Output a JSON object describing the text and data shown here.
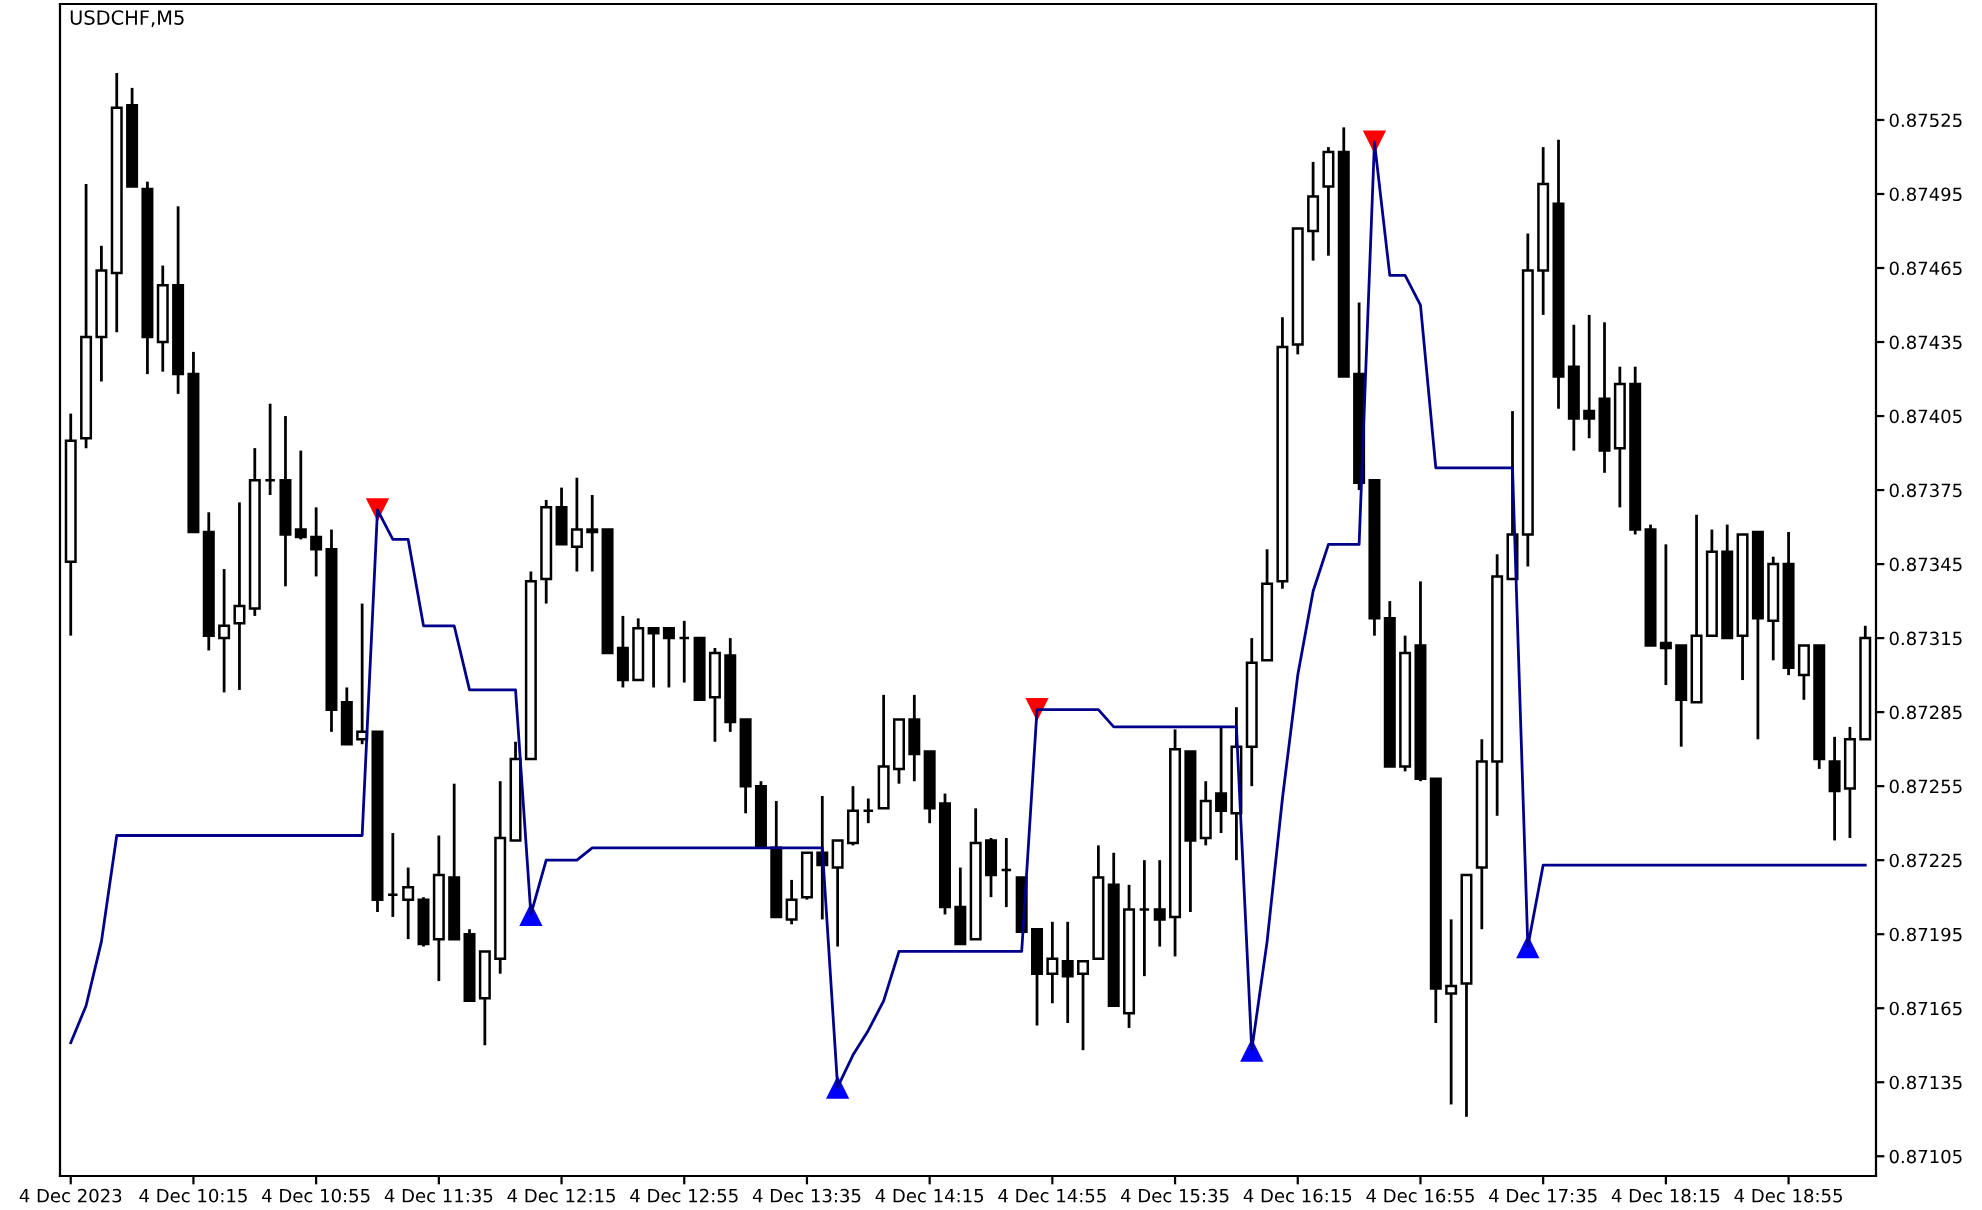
{
  "chart_data": {
    "type": "candlestick",
    "title": "USDCHF,M5",
    "categories": [
      "4 Dec 2023",
      null,
      null,
      null,
      null,
      null,
      null,
      null,
      "4 Dec 10:15",
      null,
      null,
      null,
      null,
      null,
      null,
      null,
      "4 Dec 10:55",
      null,
      null,
      null,
      null,
      null,
      null,
      null,
      "4 Dec 11:35",
      null,
      null,
      null,
      null,
      null,
      null,
      null,
      "4 Dec 12:15",
      null,
      null,
      null,
      null,
      null,
      null,
      null,
      "4 Dec 12:55",
      null,
      null,
      null,
      null,
      null,
      null,
      null,
      "4 Dec 13:35",
      null,
      null,
      null,
      null,
      null,
      null,
      null,
      "4 Dec 14:15",
      null,
      null,
      null,
      null,
      null,
      null,
      null,
      "4 Dec 14:55",
      null,
      null,
      null,
      null,
      null,
      null,
      null,
      "4 Dec 15:35",
      null,
      null,
      null,
      null,
      null,
      null,
      null,
      "4 Dec 16:15",
      null,
      null,
      null,
      null,
      null,
      null,
      null,
      "4 Dec 16:55",
      null,
      null,
      null,
      null,
      null,
      null,
      null,
      "4 Dec 17:35",
      null,
      null,
      null,
      null,
      null,
      null,
      null,
      "4 Dec 18:15",
      null,
      null,
      null,
      null,
      null,
      null,
      null,
      "4 Dec 18:55",
      null,
      null,
      null,
      null,
      null
    ],
    "ohlc": [
      [
        0.87346,
        0.87406,
        0.87316,
        0.87395
      ],
      [
        0.87396,
        0.87499,
        0.87392,
        0.87437
      ],
      [
        0.87437,
        0.87474,
        0.87419,
        0.87464
      ],
      [
        0.87463,
        0.87544,
        0.87439,
        0.8753
      ],
      [
        0.87531,
        0.87538,
        0.87498,
        0.87498
      ],
      [
        0.87497,
        0.875,
        0.87422,
        0.87437
      ],
      [
        0.87435,
        0.87466,
        0.87423,
        0.87458
      ],
      [
        0.87458,
        0.8749,
        0.87414,
        0.87422
      ],
      [
        0.87422,
        0.87431,
        0.87358,
        0.87358
      ],
      [
        0.87358,
        0.87366,
        0.8731,
        0.87316
      ],
      [
        0.87315,
        0.87343,
        0.87293,
        0.8732
      ],
      [
        0.87321,
        0.8737,
        0.87294,
        0.87328
      ],
      [
        0.87327,
        0.87392,
        0.87324,
        0.87379
      ],
      [
        0.87379,
        0.8741,
        0.87373,
        0.87379
      ],
      [
        0.87379,
        0.87405,
        0.87336,
        0.87357
      ],
      [
        0.87359,
        0.87391,
        0.87355,
        0.87356
      ],
      [
        0.87356,
        0.87368,
        0.8734,
        0.87351
      ],
      [
        0.87351,
        0.87359,
        0.87277,
        0.87286
      ],
      [
        0.87289,
        0.87295,
        0.87272,
        0.87272
      ],
      [
        0.87274,
        0.87329,
        0.87272,
        0.87277
      ],
      [
        0.87277,
        0.87277,
        0.87204,
        0.87209
      ],
      [
        0.87211,
        0.87236,
        0.87202,
        0.87211
      ],
      [
        0.87209,
        0.87222,
        0.87193,
        0.87214
      ],
      [
        0.87209,
        0.8721,
        0.8719,
        0.87191
      ],
      [
        0.87193,
        0.87235,
        0.87176,
        0.87219
      ],
      [
        0.87218,
        0.87256,
        0.87193,
        0.87193
      ],
      [
        0.87195,
        0.87197,
        0.87168,
        0.87168
      ],
      [
        0.87169,
        0.87188,
        0.8715,
        0.87188
      ],
      [
        0.87185,
        0.87257,
        0.87179,
        0.87234
      ],
      [
        0.87233,
        0.87273,
        0.87233,
        0.87266
      ],
      [
        0.87266,
        0.87342,
        0.87266,
        0.87338
      ],
      [
        0.87339,
        0.87371,
        0.87329,
        0.87368
      ],
      [
        0.87368,
        0.87376,
        0.87353,
        0.87353
      ],
      [
        0.87352,
        0.8738,
        0.87342,
        0.87359
      ],
      [
        0.87358,
        0.87373,
        0.87342,
        0.87359
      ],
      [
        0.87359,
        0.87359,
        0.87309,
        0.87309
      ],
      [
        0.87311,
        0.87324,
        0.87295,
        0.87298
      ],
      [
        0.87298,
        0.87323,
        0.87298,
        0.87319
      ],
      [
        0.87319,
        0.87319,
        0.87295,
        0.87317
      ],
      [
        0.87319,
        0.87319,
        0.87295,
        0.87315
      ],
      [
        0.87315,
        0.87322,
        0.87297,
        0.87315
      ],
      [
        0.87315,
        0.87315,
        0.8729,
        0.8729
      ],
      [
        0.87291,
        0.87311,
        0.87273,
        0.87309
      ],
      [
        0.87308,
        0.87315,
        0.87277,
        0.87281
      ],
      [
        0.87282,
        0.87282,
        0.87244,
        0.87255
      ],
      [
        0.87255,
        0.87257,
        0.8723,
        0.8723
      ],
      [
        0.8723,
        0.87249,
        0.87202,
        0.87202
      ],
      [
        0.87201,
        0.87217,
        0.87199,
        0.87209
      ],
      [
        0.8721,
        0.87228,
        0.87209,
        0.87228
      ],
      [
        0.87228,
        0.87251,
        0.87201,
        0.87223
      ],
      [
        0.87222,
        0.87233,
        0.8719,
        0.87233
      ],
      [
        0.87232,
        0.87255,
        0.87231,
        0.87245
      ],
      [
        0.87245,
        0.8725,
        0.8724,
        0.87245
      ],
      [
        0.87246,
        0.87292,
        0.87246,
        0.87263
      ],
      [
        0.87262,
        0.87282,
        0.87256,
        0.87282
      ],
      [
        0.87282,
        0.87292,
        0.87257,
        0.87268
      ],
      [
        0.87269,
        0.87269,
        0.8724,
        0.87246
      ],
      [
        0.87248,
        0.87252,
        0.87203,
        0.87206
      ],
      [
        0.87206,
        0.87222,
        0.87191,
        0.87191
      ],
      [
        0.87193,
        0.87246,
        0.87193,
        0.87232
      ],
      [
        0.87233,
        0.87234,
        0.8721,
        0.87219
      ],
      [
        0.87221,
        0.87234,
        0.87206,
        0.87221
      ],
      [
        0.87218,
        0.87218,
        0.87196,
        0.87196
      ],
      [
        0.87197,
        0.87197,
        0.87158,
        0.87179
      ],
      [
        0.87179,
        0.872,
        0.87167,
        0.87185
      ],
      [
        0.87184,
        0.872,
        0.87159,
        0.87178
      ],
      [
        0.87179,
        0.87184,
        0.87148,
        0.87184
      ],
      [
        0.87185,
        0.87231,
        0.87185,
        0.87218
      ],
      [
        0.87215,
        0.87228,
        0.87166,
        0.87166
      ],
      [
        0.87163,
        0.87215,
        0.87157,
        0.87205
      ],
      [
        0.87205,
        0.87225,
        0.87178,
        0.87205
      ],
      [
        0.87205,
        0.87225,
        0.8719,
        0.87201
      ],
      [
        0.87202,
        0.87278,
        0.87186,
        0.8727
      ],
      [
        0.87269,
        0.87269,
        0.87204,
        0.87233
      ],
      [
        0.87234,
        0.87257,
        0.87231,
        0.87249
      ],
      [
        0.87252,
        0.87279,
        0.87236,
        0.87245
      ],
      [
        0.87244,
        0.87287,
        0.87225,
        0.87271
      ],
      [
        0.87271,
        0.87315,
        0.87255,
        0.87305
      ],
      [
        0.87306,
        0.87351,
        0.87306,
        0.87337
      ],
      [
        0.87338,
        0.87445,
        0.87335,
        0.87433
      ],
      [
        0.87434,
        0.87481,
        0.8743,
        0.87481
      ],
      [
        0.8748,
        0.87508,
        0.87468,
        0.87494
      ],
      [
        0.87498,
        0.87514,
        0.8747,
        0.87512
      ],
      [
        0.87512,
        0.87522,
        0.87421,
        0.87421
      ],
      [
        0.87422,
        0.87451,
        0.87375,
        0.87378
      ],
      [
        0.87379,
        0.87379,
        0.87316,
        0.87323
      ],
      [
        0.87323,
        0.8733,
        0.87263,
        0.87263
      ],
      [
        0.87263,
        0.87316,
        0.87261,
        0.87309
      ],
      [
        0.87312,
        0.87338,
        0.87257,
        0.87258
      ],
      [
        0.87258,
        0.87258,
        0.87159,
        0.87173
      ],
      [
        0.87171,
        0.87201,
        0.87126,
        0.87174
      ],
      [
        0.87175,
        0.87219,
        0.87121,
        0.87219
      ],
      [
        0.87222,
        0.87274,
        0.87197,
        0.87265
      ],
      [
        0.87265,
        0.87349,
        0.87243,
        0.8734
      ],
      [
        0.87339,
        0.87407,
        0.87339,
        0.87357
      ],
      [
        0.87357,
        0.87479,
        0.87344,
        0.87464
      ],
      [
        0.87464,
        0.87514,
        0.87446,
        0.87499
      ],
      [
        0.87491,
        0.87517,
        0.87408,
        0.87421
      ],
      [
        0.87425,
        0.87442,
        0.87391,
        0.87404
      ],
      [
        0.87407,
        0.87446,
        0.87396,
        0.87404
      ],
      [
        0.87412,
        0.87443,
        0.87382,
        0.87391
      ],
      [
        0.87392,
        0.87425,
        0.87368,
        0.87418
      ],
      [
        0.87418,
        0.87425,
        0.87357,
        0.87359
      ],
      [
        0.87359,
        0.87361,
        0.87312,
        0.87312
      ],
      [
        0.87313,
        0.87353,
        0.87296,
        0.87311
      ],
      [
        0.87312,
        0.87312,
        0.87271,
        0.8729
      ],
      [
        0.87289,
        0.87365,
        0.87289,
        0.87316
      ],
      [
        0.87316,
        0.87359,
        0.87316,
        0.8735
      ],
      [
        0.8735,
        0.87361,
        0.87315,
        0.87315
      ],
      [
        0.87316,
        0.87357,
        0.87298,
        0.87357
      ],
      [
        0.87358,
        0.87358,
        0.87274,
        0.87323
      ],
      [
        0.87322,
        0.87348,
        0.87306,
        0.87345
      ],
      [
        0.87345,
        0.87358,
        0.873,
        0.87303
      ],
      [
        0.873,
        0.87312,
        0.8729,
        0.87312
      ],
      [
        0.87312,
        0.87312,
        0.87262,
        0.87266
      ],
      [
        0.87265,
        0.87275,
        0.87233,
        0.87253
      ],
      [
        0.87254,
        0.87279,
        0.87234,
        0.87274
      ],
      [
        0.87274,
        0.8732,
        0.87274,
        0.87315
      ]
    ],
    "series": [
      {
        "type": "line",
        "color": "#00008b",
        "values": [
          0.87151,
          0.87166,
          0.87192,
          0.87235,
          0.87235,
          0.87235,
          0.87235,
          0.87235,
          0.87235,
          0.87235,
          0.87235,
          0.87235,
          0.87235,
          0.87235,
          0.87235,
          0.87235,
          0.87235,
          0.87235,
          0.87235,
          0.87235,
          0.87367,
          0.87355,
          0.87355,
          0.8732,
          0.8732,
          0.8732,
          0.87294,
          0.87294,
          0.87294,
          0.87294,
          0.87203,
          0.87225,
          0.87225,
          0.87225,
          0.8723,
          0.8723,
          0.8723,
          0.8723,
          0.8723,
          0.8723,
          0.8723,
          0.8723,
          0.8723,
          0.8723,
          0.8723,
          0.8723,
          0.8723,
          0.8723,
          0.8723,
          0.8723,
          0.87133,
          0.87146,
          0.87156,
          0.87168,
          0.87188,
          0.87188,
          0.87188,
          0.87188,
          0.87188,
          0.87188,
          0.87188,
          0.87188,
          0.87188,
          0.87286,
          0.87286,
          0.87286,
          0.87286,
          0.87286,
          0.87279,
          0.87279,
          0.87279,
          0.87279,
          0.87279,
          0.87279,
          0.87279,
          0.87279,
          0.87279,
          0.87148,
          0.87192,
          0.8725,
          0.873,
          0.87334,
          0.87353,
          0.87353,
          0.87353,
          0.87516,
          0.87462,
          0.87462,
          0.8745,
          0.87384,
          0.87384,
          0.87384,
          0.87384,
          0.87384,
          0.87384,
          0.8719,
          0.87223,
          0.87223,
          0.87223,
          0.87223,
          0.87223,
          0.87223,
          0.87223,
          0.87223,
          0.87223,
          0.87223,
          0.87223,
          0.87223,
          0.87223,
          0.87223,
          0.87223,
          0.87223,
          0.87223,
          0.87223,
          0.87223,
          0.87223,
          0.87223,
          0.87223
        ]
      },
      {
        "type": "scatter",
        "color": "#ff0000",
        "marker": "triangle",
        "values": [
          null,
          null,
          null,
          null,
          null,
          null,
          null,
          null,
          null,
          null,
          null,
          null,
          null,
          null,
          null,
          null,
          null,
          null,
          null,
          null,
          0.87367,
          null,
          null,
          null,
          null,
          null,
          null,
          null,
          null,
          null,
          null,
          null,
          null,
          null,
          null,
          null,
          null,
          null,
          null,
          null,
          null,
          null,
          null,
          null,
          null,
          null,
          null,
          null,
          null,
          null,
          null,
          null,
          null,
          null,
          null,
          null,
          null,
          null,
          null,
          null,
          null,
          null,
          null,
          0.87286,
          null,
          null,
          null,
          null,
          null,
          null,
          null,
          null,
          null,
          null,
          null,
          null,
          null,
          null,
          null,
          null,
          null,
          null,
          null,
          null,
          null,
          0.87516,
          null,
          null,
          null,
          null,
          null,
          null,
          null,
          null,
          null,
          null,
          null,
          null,
          null,
          null,
          null,
          null,
          null,
          null,
          null,
          null,
          null,
          null,
          null,
          null,
          null,
          null,
          null,
          null,
          null,
          null,
          null,
          null
        ]
      },
      {
        "type": "scatter",
        "color": "#0000ff",
        "marker": "triangle",
        "values": [
          null,
          null,
          null,
          null,
          null,
          null,
          null,
          null,
          null,
          null,
          null,
          null,
          null,
          null,
          null,
          null,
          null,
          null,
          null,
          null,
          null,
          null,
          null,
          null,
          null,
          null,
          null,
          null,
          null,
          null,
          0.87203,
          null,
          null,
          null,
          null,
          null,
          null,
          null,
          null,
          null,
          null,
          null,
          null,
          null,
          null,
          null,
          null,
          null,
          null,
          null,
          0.87133,
          null,
          null,
          null,
          null,
          null,
          null,
          null,
          null,
          null,
          null,
          null,
          null,
          null,
          null,
          null,
          null,
          null,
          null,
          null,
          null,
          null,
          null,
          null,
          null,
          null,
          null,
          0.87148,
          null,
          null,
          null,
          null,
          null,
          null,
          null,
          null,
          null,
          null,
          null,
          null,
          null,
          null,
          null,
          null,
          null,
          0.8719,
          null,
          null,
          null,
          null,
          null,
          null,
          null,
          null,
          null,
          null,
          null,
          null,
          null,
          null,
          null,
          null,
          null,
          null,
          null,
          null,
          null,
          null
        ]
      }
    ],
    "ylim": [
      0.87097,
      0.87572
    ],
    "yticks": [
      0.87105,
      0.87135,
      0.87165,
      0.87195,
      0.87225,
      0.87255,
      0.87285,
      0.87315,
      0.87345,
      0.87375,
      0.87405,
      0.87435,
      0.87465,
      0.87495,
      0.87525
    ]
  }
}
